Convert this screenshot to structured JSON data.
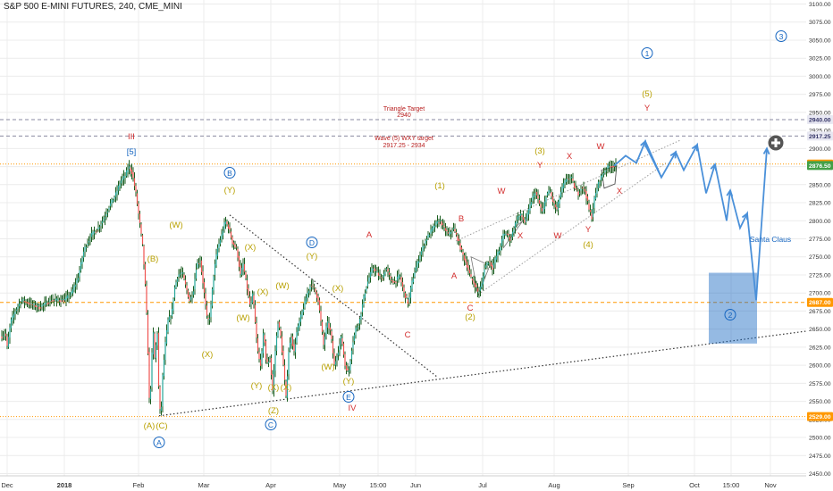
{
  "header": {
    "title": "S&P 500 E-MINI FUTURES, 240, CME_MINI"
  },
  "chart_data": {
    "type": "line",
    "title": "S&P 500 E-MINI FUTURES, 240, CME_MINI",
    "x_tick_labels": [
      "Dec",
      "2018",
      "Feb",
      "Mar",
      "Apr",
      "May",
      "15:00",
      "Jun",
      "Jul",
      "Aug",
      "Sep",
      "Oct",
      "15:00",
      "Nov"
    ],
    "y_tick_labels": [
      "2450.00",
      "2475.00",
      "2500.00",
      "2525.00",
      "2550.00",
      "2575.00",
      "2600.00",
      "2625.00",
      "2650.00",
      "2675.00",
      "2700.00",
      "2725.00",
      "2750.00",
      "2775.00",
      "2800.00",
      "2825.00",
      "2850.00",
      "2875.00",
      "2900.00",
      "2925.00",
      "2950.00",
      "2975.00",
      "3000.00",
      "3025.00",
      "3050.00",
      "3075.00",
      "3100.00"
    ],
    "ylim": [
      2437,
      3110
    ],
    "price_anchors": [
      {
        "t": 0,
        "v": 2640
      },
      {
        "t": 4,
        "v": 2645
      },
      {
        "t": 6,
        "v": 2625
      },
      {
        "t": 10,
        "v": 2660
      },
      {
        "t": 15,
        "v": 2675
      },
      {
        "t": 22,
        "v": 2690
      },
      {
        "t": 32,
        "v": 2685
      },
      {
        "t": 42,
        "v": 2680
      },
      {
        "t": 55,
        "v": 2690
      },
      {
        "t": 62,
        "v": 2690
      },
      {
        "t": 70,
        "v": 2690
      },
      {
        "t": 78,
        "v": 2700
      },
      {
        "t": 85,
        "v": 2720
      },
      {
        "t": 92,
        "v": 2760
      },
      {
        "t": 100,
        "v": 2780
      },
      {
        "t": 108,
        "v": 2790
      },
      {
        "t": 115,
        "v": 2805
      },
      {
        "t": 120,
        "v": 2820
      },
      {
        "t": 127,
        "v": 2835
      },
      {
        "t": 133,
        "v": 2855
      },
      {
        "t": 138,
        "v": 2862
      },
      {
        "t": 142,
        "v": 2875
      },
      {
        "t": 146,
        "v": 2866
      },
      {
        "t": 150,
        "v": 2838
      },
      {
        "t": 154,
        "v": 2800
      },
      {
        "t": 158,
        "v": 2760
      },
      {
        "t": 161,
        "v": 2700
      },
      {
        "t": 163,
        "v": 2640
      },
      {
        "t": 165,
        "v": 2553
      },
      {
        "t": 167,
        "v": 2575
      },
      {
        "t": 169,
        "v": 2655
      },
      {
        "t": 171,
        "v": 2610
      },
      {
        "t": 174,
        "v": 2645
      },
      {
        "t": 176,
        "v": 2545
      },
      {
        "t": 178,
        "v": 2529
      },
      {
        "t": 180,
        "v": 2585
      },
      {
        "t": 183,
        "v": 2630
      },
      {
        "t": 186,
        "v": 2662
      },
      {
        "t": 190,
        "v": 2670
      },
      {
        "t": 193,
        "v": 2705
      },
      {
        "t": 197,
        "v": 2725
      },
      {
        "t": 202,
        "v": 2728
      },
      {
        "t": 206,
        "v": 2708
      },
      {
        "t": 210,
        "v": 2690
      },
      {
        "t": 214,
        "v": 2700
      },
      {
        "t": 218,
        "v": 2740
      },
      {
        "t": 222,
        "v": 2745
      },
      {
        "t": 226,
        "v": 2705
      },
      {
        "t": 230,
        "v": 2660
      },
      {
        "t": 233,
        "v": 2668
      },
      {
        "t": 237,
        "v": 2725
      },
      {
        "t": 241,
        "v": 2760
      },
      {
        "t": 246,
        "v": 2780
      },
      {
        "t": 250,
        "v": 2800
      },
      {
        "t": 254,
        "v": 2790
      },
      {
        "t": 258,
        "v": 2770
      },
      {
        "t": 263,
        "v": 2760
      },
      {
        "t": 267,
        "v": 2725
      },
      {
        "t": 270,
        "v": 2740
      },
      {
        "t": 274,
        "v": 2710
      },
      {
        "t": 278,
        "v": 2680
      },
      {
        "t": 281,
        "v": 2700
      },
      {
        "t": 284,
        "v": 2650
      },
      {
        "t": 287,
        "v": 2612
      },
      {
        "t": 290,
        "v": 2600
      },
      {
        "t": 293,
        "v": 2650
      },
      {
        "t": 296,
        "v": 2600
      },
      {
        "t": 300,
        "v": 2610
      },
      {
        "t": 303,
        "v": 2565
      },
      {
        "t": 306,
        "v": 2620
      },
      {
        "t": 309,
        "v": 2660
      },
      {
        "t": 312,
        "v": 2640
      },
      {
        "t": 315,
        "v": 2600
      },
      {
        "t": 318,
        "v": 2555
      },
      {
        "t": 321,
        "v": 2620
      },
      {
        "t": 324,
        "v": 2640
      },
      {
        "t": 327,
        "v": 2618
      },
      {
        "t": 330,
        "v": 2645
      },
      {
        "t": 334,
        "v": 2665
      },
      {
        "t": 338,
        "v": 2682
      },
      {
        "t": 342,
        "v": 2700
      },
      {
        "t": 346,
        "v": 2713
      },
      {
        "t": 350,
        "v": 2705
      },
      {
        "t": 354,
        "v": 2690
      },
      {
        "t": 357,
        "v": 2660
      },
      {
        "t": 360,
        "v": 2628
      },
      {
        "t": 364,
        "v": 2660
      },
      {
        "t": 368,
        "v": 2645
      },
      {
        "t": 372,
        "v": 2600
      },
      {
        "t": 376,
        "v": 2618
      },
      {
        "t": 380,
        "v": 2640
      },
      {
        "t": 384,
        "v": 2600
      },
      {
        "t": 388,
        "v": 2588
      },
      {
        "t": 392,
        "v": 2628
      },
      {
        "t": 396,
        "v": 2650
      },
      {
        "t": 400,
        "v": 2660
      },
      {
        "t": 403,
        "v": 2680
      },
      {
        "t": 406,
        "v": 2700
      },
      {
        "t": 410,
        "v": 2718
      },
      {
        "t": 415,
        "v": 2735
      },
      {
        "t": 420,
        "v": 2728
      },
      {
        "t": 425,
        "v": 2718
      },
      {
        "t": 430,
        "v": 2735
      },
      {
        "t": 435,
        "v": 2718
      },
      {
        "t": 440,
        "v": 2715
      },
      {
        "t": 445,
        "v": 2725
      },
      {
        "t": 450,
        "v": 2700
      },
      {
        "t": 455,
        "v": 2685
      },
      {
        "t": 458,
        "v": 2710
      },
      {
        "t": 462,
        "v": 2730
      },
      {
        "t": 466,
        "v": 2745
      },
      {
        "t": 470,
        "v": 2760
      },
      {
        "t": 475,
        "v": 2775
      },
      {
        "t": 480,
        "v": 2785
      },
      {
        "t": 485,
        "v": 2795
      },
      {
        "t": 490,
        "v": 2800
      },
      {
        "t": 495,
        "v": 2790
      },
      {
        "t": 500,
        "v": 2780
      },
      {
        "t": 505,
        "v": 2790
      },
      {
        "t": 510,
        "v": 2775
      },
      {
        "t": 515,
        "v": 2755
      },
      {
        "t": 520,
        "v": 2740
      },
      {
        "t": 525,
        "v": 2720
      },
      {
        "t": 530,
        "v": 2710
      },
      {
        "t": 533,
        "v": 2700
      },
      {
        "t": 537,
        "v": 2712
      },
      {
        "t": 540,
        "v": 2735
      },
      {
        "t": 545,
        "v": 2745
      },
      {
        "t": 549,
        "v": 2735
      },
      {
        "t": 553,
        "v": 2750
      },
      {
        "t": 557,
        "v": 2760
      },
      {
        "t": 561,
        "v": 2780
      },
      {
        "t": 565,
        "v": 2783
      },
      {
        "t": 569,
        "v": 2773
      },
      {
        "t": 573,
        "v": 2790
      },
      {
        "t": 577,
        "v": 2805
      },
      {
        "t": 581,
        "v": 2808
      },
      {
        "t": 585,
        "v": 2798
      },
      {
        "t": 589,
        "v": 2812
      },
      {
        "t": 593,
        "v": 2830
      },
      {
        "t": 597,
        "v": 2840
      },
      {
        "t": 601,
        "v": 2825
      },
      {
        "t": 605,
        "v": 2810
      },
      {
        "t": 609,
        "v": 2835
      },
      {
        "t": 613,
        "v": 2842
      },
      {
        "t": 617,
        "v": 2825
      },
      {
        "t": 621,
        "v": 2815
      },
      {
        "t": 625,
        "v": 2838
      },
      {
        "t": 629,
        "v": 2852
      },
      {
        "t": 633,
        "v": 2858
      },
      {
        "t": 637,
        "v": 2860
      },
      {
        "t": 641,
        "v": 2845
      },
      {
        "t": 645,
        "v": 2838
      },
      {
        "t": 649,
        "v": 2848
      },
      {
        "t": 653,
        "v": 2840
      },
      {
        "t": 657,
        "v": 2815
      },
      {
        "t": 660,
        "v": 2805
      },
      {
        "t": 663,
        "v": 2830
      },
      {
        "t": 667,
        "v": 2850
      },
      {
        "t": 671,
        "v": 2862
      },
      {
        "t": 675,
        "v": 2870
      },
      {
        "t": 679,
        "v": 2875
      },
      {
        "t": 683,
        "v": 2876
      },
      {
        "t": 687,
        "v": 2876
      }
    ],
    "horizontal_lines": [
      {
        "value": 2940,
        "label": "2940.00",
        "style": "dashed",
        "color": "#8a8aa0",
        "tag_bg": "#e8e8f2",
        "tag_text": "#333366"
      },
      {
        "value": 2917.25,
        "label": "2917.25",
        "style": "dashed",
        "color": "#8a8aa0",
        "tag_bg": "#e8e8f2",
        "tag_text": "#333366"
      },
      {
        "value": 2878.5,
        "label": "2878.50",
        "style": "dotted",
        "color": "#ff9800",
        "tag_bg": "#ff9800",
        "tag_text": "#ffffff"
      },
      {
        "value": 2876.5,
        "label": "2876.50",
        "style": "none",
        "color": "#4caf50",
        "tag_bg": "#43a047",
        "tag_text": "#ffffff"
      },
      {
        "value": 2687,
        "label": "2687.00",
        "style": "dashed",
        "color": "#ff9800",
        "tag_bg": "#ff9800",
        "tag_text": "#ffffff"
      },
      {
        "value": 2529,
        "label": "2529.00",
        "style": "dotted",
        "color": "#ff9800",
        "tag_bg": "#ff9800",
        "tag_text": "#ffffff"
      }
    ],
    "text_annotations": [
      {
        "text": "Triangle Target",
        "color": "#b71c1c"
      },
      {
        "text": "2940",
        "color": "#b71c1c"
      },
      {
        "text": "Wave (5) WXY target",
        "color": "#b71c1c"
      },
      {
        "text": "2917.25 - 2934",
        "color": "#b71c1c"
      },
      {
        "text": "Santa Claus",
        "color": "#1565c0"
      }
    ],
    "wave_labels": [
      {
        "text": "III",
        "color": "#d32f2f"
      },
      {
        "text": "[5]",
        "color": "#1565c0"
      },
      {
        "text": "IV",
        "color": "#d32f2f"
      },
      {
        "text": "A",
        "color": "#1565c0",
        "circled": true
      },
      {
        "text": "B",
        "color": "#1565c0",
        "circled": true
      },
      {
        "text": "C",
        "color": "#1565c0",
        "circled": true
      },
      {
        "text": "D",
        "color": "#1565c0",
        "circled": true
      },
      {
        "text": "E",
        "color": "#1565c0",
        "circled": true
      },
      {
        "text": "1",
        "color": "#1565c0",
        "circled": true
      },
      {
        "text": "2",
        "color": "#1565c0",
        "circled": true
      },
      {
        "text": "3",
        "color": "#1565c0",
        "circled": true
      },
      {
        "text": "(A)",
        "color": "#b8a000"
      },
      {
        "text": "(C)",
        "color": "#b8a000"
      },
      {
        "text": "(B)",
        "color": "#b8a000"
      },
      {
        "text": "(W)",
        "color": "#b8a000"
      },
      {
        "text": "(X)",
        "color": "#b8a000"
      },
      {
        "text": "(Y)",
        "color": "#b8a000"
      },
      {
        "text": "(X)",
        "color": "#b8a000"
      },
      {
        "text": "(X)",
        "color": "#b8a000"
      },
      {
        "text": "(W)",
        "color": "#b8a000"
      },
      {
        "text": "(W)",
        "color": "#b8a000"
      },
      {
        "text": "(X)",
        "color": "#b8a000"
      },
      {
        "text": "(Y)",
        "color": "#b8a000"
      },
      {
        "text": "(Y)",
        "color": "#b8a000"
      },
      {
        "text": "(X)",
        "color": "#b8a000"
      },
      {
        "text": "(Z)",
        "color": "#b8a000"
      },
      {
        "text": "(X)",
        "color": "#b8a000"
      },
      {
        "text": "(W)",
        "color": "#b8a000"
      },
      {
        "text": "(Y)",
        "color": "#b8a000"
      },
      {
        "text": "(1)",
        "color": "#b8a000"
      },
      {
        "text": "(2)",
        "color": "#b8a000"
      },
      {
        "text": "(3)",
        "color": "#b8a000"
      },
      {
        "text": "(4)",
        "color": "#b8a000"
      },
      {
        "text": "(5)",
        "color": "#b8a000"
      },
      {
        "text": "A",
        "color": "#d32f2f"
      },
      {
        "text": "B",
        "color": "#d32f2f"
      },
      {
        "text": "C",
        "color": "#d32f2f"
      },
      {
        "text": "B",
        "color": "#d32f2f"
      },
      {
        "text": "A",
        "color": "#d32f2f"
      },
      {
        "text": "C",
        "color": "#d32f2f"
      },
      {
        "text": "W",
        "color": "#d32f2f"
      },
      {
        "text": "X",
        "color": "#d32f2f"
      },
      {
        "text": "Y",
        "color": "#d32f2f"
      },
      {
        "text": "X",
        "color": "#d32f2f"
      },
      {
        "text": "W",
        "color": "#d32f2f"
      },
      {
        "text": "W",
        "color": "#d32f2f"
      },
      {
        "text": "Y",
        "color": "#d32f2f"
      },
      {
        "text": "X",
        "color": "#d32f2f"
      },
      {
        "text": "Y",
        "color": "#d32f2f"
      }
    ],
    "projection_box": {
      "y_low": 2630,
      "y_high": 2728,
      "color": "#1565c0"
    },
    "projection_path_values": [
      2876,
      2890,
      2880,
      2910,
      2860,
      2895,
      2870,
      2905,
      2838,
      2878,
      2800,
      2842,
      2790,
      2810,
      2690,
      2900
    ],
    "colors": {
      "price": "#1b5e20",
      "candle_up": "#26a69a",
      "candle_down": "#ef5350",
      "projection": "#4a90d9",
      "channel": "#9e9e9e",
      "trendline": "#333333",
      "grid": "#ececec"
    }
  }
}
